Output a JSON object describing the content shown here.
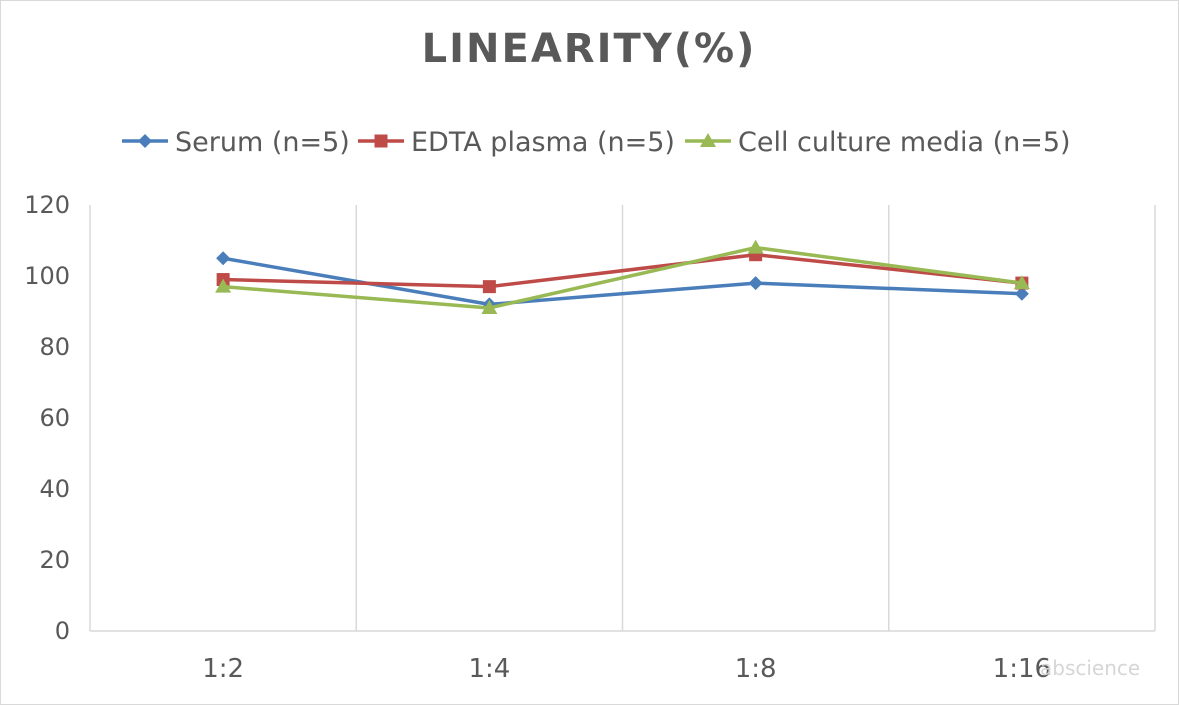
{
  "chart_data": {
    "type": "line",
    "title": "LINEARITY(%)",
    "categories": [
      "1:2",
      "1:4",
      "1:8",
      "1:16"
    ],
    "series": [
      {
        "name": "Serum (n=5)",
        "values": [
          105,
          92,
          98,
          95
        ],
        "color": "#4a7ebb",
        "marker": "diamond"
      },
      {
        "name": "EDTA plasma (n=5)",
        "values": [
          99,
          97,
          106,
          98
        ],
        "color": "#be4b48",
        "marker": "square"
      },
      {
        "name": "Cell culture media (n=5)",
        "values": [
          97,
          91,
          108,
          98
        ],
        "color": "#98b954",
        "marker": "triangle"
      }
    ],
    "yticks": [
      0,
      20,
      40,
      60,
      80,
      100,
      120
    ],
    "ylim": [
      0,
      120
    ],
    "xlabel": "",
    "ylabel": "",
    "grid": "vertical",
    "legend_position": "top",
    "gridline_color": "#d9d9d9"
  },
  "watermark": "abscience"
}
